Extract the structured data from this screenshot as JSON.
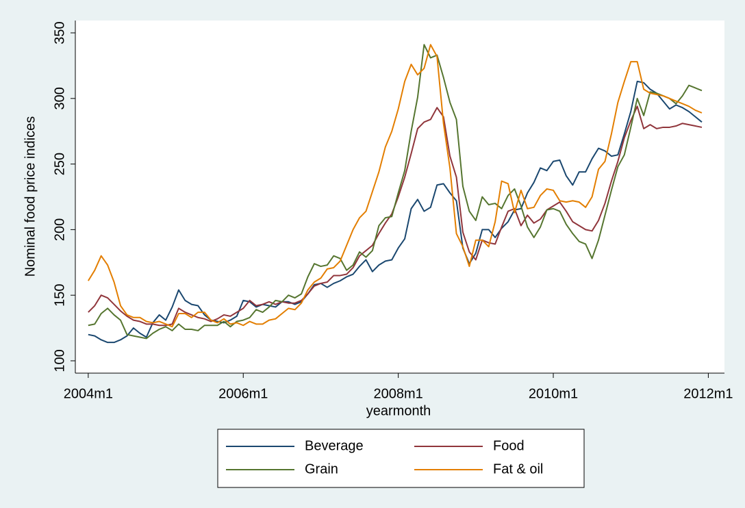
{
  "chart_data": {
    "type": "line",
    "x_label": "yearmonth",
    "y_label": "Nominal food price indices",
    "x": [
      528,
      529,
      530,
      531,
      532,
      533,
      534,
      535,
      536,
      537,
      538,
      539,
      540,
      541,
      542,
      543,
      544,
      545,
      546,
      547,
      548,
      549,
      550,
      551,
      552,
      553,
      554,
      555,
      556,
      557,
      558,
      559,
      560,
      561,
      562,
      563,
      564,
      565,
      566,
      567,
      568,
      569,
      570,
      571,
      572,
      573,
      574,
      575,
      576,
      577,
      578,
      579,
      580,
      581,
      582,
      583,
      584,
      585,
      586,
      587,
      588,
      589,
      590,
      591,
      592,
      593,
      594,
      595,
      596,
      597,
      598,
      599,
      600,
      601,
      602,
      603,
      604,
      605,
      606,
      607,
      608,
      609,
      610,
      611,
      612,
      613,
      614,
      615,
      616,
      617,
      618,
      619,
      620,
      621,
      622,
      623
    ],
    "series": [
      {
        "name": "Beverage",
        "color": "#1a476f",
        "values": [
          120,
          119,
          116,
          114,
          114,
          116,
          119,
          125,
          121,
          118,
          129,
          135,
          131,
          141,
          154,
          146,
          143,
          142,
          135,
          131,
          130,
          129,
          131,
          134,
          146,
          145,
          141,
          143,
          142,
          141,
          145,
          145,
          143,
          145,
          151,
          158,
          159,
          156,
          159,
          161,
          164,
          166,
          172,
          177,
          168,
          173,
          176,
          177,
          186,
          193,
          216,
          223,
          214,
          217,
          234,
          235,
          228,
          222,
          186,
          174,
          182,
          200,
          200,
          194,
          201,
          206,
          215,
          216,
          228,
          236,
          247,
          245,
          252,
          253,
          241,
          234,
          244,
          244,
          254,
          262,
          260,
          256,
          257,
          273,
          290,
          313,
          312,
          307,
          304,
          298,
          292,
          295,
          293,
          290,
          286,
          282
        ]
      },
      {
        "name": "Food",
        "color": "#90353b",
        "values": [
          137,
          142,
          150,
          148,
          143,
          138,
          134,
          131,
          130,
          128,
          128,
          127,
          127,
          128,
          140,
          137,
          135,
          133,
          132,
          130,
          132,
          135,
          134,
          137,
          140,
          146,
          142,
          143,
          145,
          143,
          145,
          144,
          144,
          146,
          151,
          157,
          159,
          160,
          165,
          165,
          166,
          171,
          180,
          184,
          188,
          197,
          205,
          212,
          225,
          240,
          258,
          277,
          282,
          284,
          293,
          286,
          256,
          240,
          198,
          183,
          177,
          192,
          190,
          189,
          202,
          214,
          216,
          203,
          211,
          205,
          208,
          215,
          218,
          221,
          214,
          206,
          203,
          200,
          199,
          207,
          220,
          237,
          252,
          270,
          283,
          294,
          277,
          280,
          277,
          278,
          278,
          279,
          281,
          280,
          279,
          278
        ]
      },
      {
        "name": "Grain",
        "color": "#55752f",
        "values": [
          127,
          128,
          136,
          140,
          135,
          131,
          120,
          119,
          118,
          117,
          121,
          124,
          126,
          123,
          128,
          124,
          124,
          123,
          127,
          127,
          127,
          130,
          126,
          130,
          131,
          133,
          139,
          137,
          141,
          146,
          145,
          150,
          148,
          151,
          164,
          174,
          172,
          173,
          180,
          178,
          169,
          173,
          183,
          179,
          184,
          203,
          209,
          210,
          228,
          245,
          275,
          301,
          341,
          331,
          333,
          316,
          297,
          284,
          233,
          214,
          207,
          225,
          219,
          220,
          216,
          226,
          231,
          218,
          202,
          194,
          202,
          215,
          216,
          214,
          204,
          197,
          191,
          189,
          178,
          192,
          211,
          230,
          248,
          257,
          278,
          300,
          287,
          305,
          304,
          302,
          300,
          296,
          302,
          310,
          308,
          306
        ]
      },
      {
        "name": "Fat & oil",
        "color": "#e37e00",
        "values": [
          161,
          169,
          180,
          173,
          160,
          142,
          135,
          133,
          133,
          130,
          129,
          130,
          128,
          126,
          136,
          136,
          133,
          137,
          137,
          131,
          129,
          132,
          128,
          129,
          127,
          130,
          128,
          128,
          131,
          132,
          136,
          140,
          139,
          144,
          154,
          160,
          163,
          170,
          171,
          176,
          188,
          200,
          209,
          214,
          229,
          244,
          263,
          275,
          292,
          313,
          326,
          318,
          323,
          341,
          332,
          281,
          247,
          197,
          187,
          172,
          192,
          192,
          187,
          206,
          237,
          235,
          213,
          230,
          216,
          217,
          226,
          231,
          230,
          222,
          221,
          222,
          221,
          217,
          225,
          246,
          252,
          273,
          297,
          313,
          328,
          328,
          307,
          304,
          303,
          302,
          300,
          298,
          296,
          294,
          291,
          289
        ]
      }
    ],
    "xlim": [
      526,
      626.5
    ],
    "xticks": [
      {
        "value": 528,
        "label": "2004m1"
      },
      {
        "value": 552,
        "label": "2006m1"
      },
      {
        "value": 576,
        "label": "2008m1"
      },
      {
        "value": 600,
        "label": "2010m1"
      },
      {
        "value": 624,
        "label": "2012m1"
      }
    ],
    "ylim": [
      90.6,
      359.4
    ],
    "yticks": [
      100,
      150,
      200,
      250,
      300,
      350
    ],
    "grid": false
  }
}
